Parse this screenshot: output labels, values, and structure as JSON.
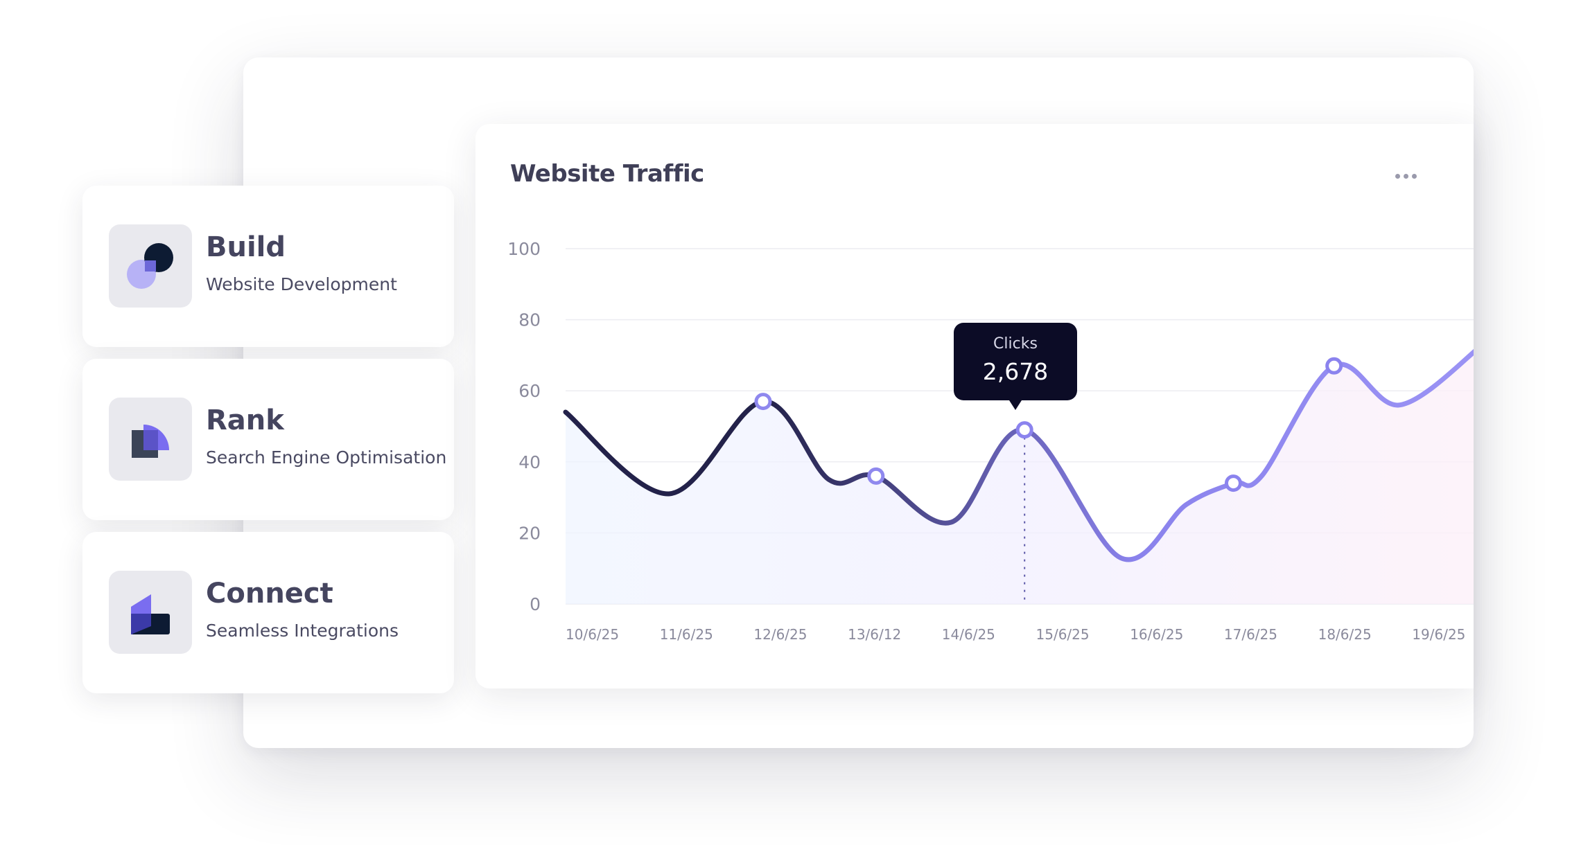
{
  "cards": [
    {
      "title": "Build",
      "subtitle": "Website Development",
      "icon": "build-icon"
    },
    {
      "title": "Rank",
      "subtitle": "Search Engine Optimisation",
      "icon": "rank-icon"
    },
    {
      "title": "Connect",
      "subtitle": "Seamless Integrations",
      "icon": "connect-icon"
    }
  ],
  "chart": {
    "more_icon": "more-dots-icon",
    "tooltip": {
      "label": "Clicks",
      "value": "2,678"
    }
  },
  "colors": {
    "line_dark": "#23224a",
    "line_light": "#9b93f5",
    "tooltip_bg": "#0c0c26",
    "text_dark": "#3f3f57"
  },
  "chart_data": {
    "type": "line",
    "title": "Website Traffic",
    "xlabel": "",
    "ylabel": "",
    "ylim": [
      0,
      100
    ],
    "y_ticks": [
      0,
      20,
      40,
      60,
      80,
      100
    ],
    "grid": true,
    "categories": [
      "10/6/25",
      "11/6/25",
      "12/6/25",
      "13/6/12",
      "14/6/25",
      "15/6/25",
      "16/6/25",
      "17/6/25",
      "18/6/25",
      "19/6/25"
    ],
    "curve": [
      {
        "x": 0.0,
        "y": 54
      },
      {
        "x": 1.1,
        "y": 31
      },
      {
        "x": 2.1,
        "y": 57
      },
      {
        "x": 2.8,
        "y": 35
      },
      {
        "x": 3.3,
        "y": 36
      },
      {
        "x": 4.1,
        "y": 23
      },
      {
        "x": 4.88,
        "y": 49
      },
      {
        "x": 5.9,
        "y": 13
      },
      {
        "x": 6.6,
        "y": 28
      },
      {
        "x": 7.1,
        "y": 34
      },
      {
        "x": 7.4,
        "y": 36
      },
      {
        "x": 8.17,
        "y": 67
      },
      {
        "x": 8.87,
        "y": 56
      },
      {
        "x": 9.75,
        "y": 73
      }
    ],
    "markers": [
      {
        "x": 2.1,
        "y": 57
      },
      {
        "x": 3.3,
        "y": 36
      },
      {
        "x": 4.88,
        "y": 49
      },
      {
        "x": 7.1,
        "y": 34
      },
      {
        "x": 8.17,
        "y": 67
      }
    ],
    "highlight": {
      "x": 4.88,
      "y": 49,
      "label": "Clicks",
      "value": "2,678"
    }
  }
}
